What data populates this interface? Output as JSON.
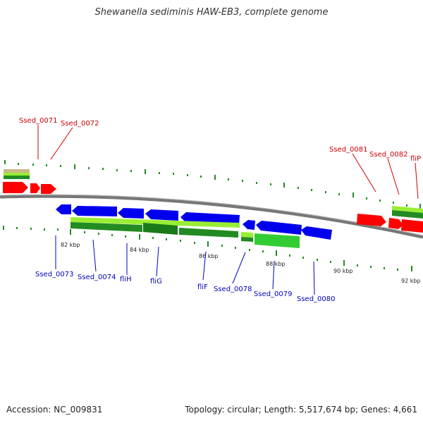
{
  "title": "Shewanella sediminis HAW-EB3, complete genome",
  "footer": {
    "accession": "Accession: NC_009831",
    "topology": "Topology: circular; Length: 5,517,674 bp; Genes: 4,661"
  },
  "colors": {
    "forward_gene": "#ff0000",
    "reverse_gene": "#0000ee",
    "forward_label": "#cc0000",
    "reverse_label": "#0000bb",
    "backbone": "#777777",
    "tick": "#228b22",
    "cds_light": "#99ee33",
    "cds_dark": "#228b22"
  },
  "scale_labels": [
    "82 kbp",
    "84 kbp",
    "86 kbp",
    "88 kbp",
    "90 kbp",
    "92 kbp"
  ],
  "forward_genes": [
    "Ssed_0071",
    "Ssed_0072",
    "Ssed_0081",
    "Ssed_0082",
    "fliP"
  ],
  "reverse_genes": [
    "Ssed_0073",
    "Ssed_0074",
    "fliH",
    "fliG",
    "fliF",
    "Ssed_0078",
    "Ssed_0079",
    "Ssed_0080"
  ]
}
